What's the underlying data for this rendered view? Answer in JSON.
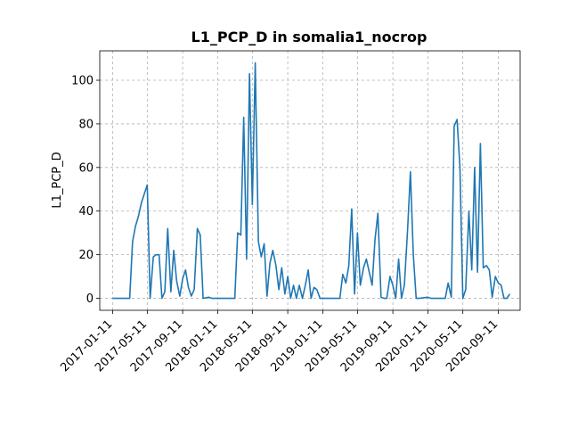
{
  "chart_data": {
    "type": "line",
    "title": "L1_PCP_D in somalia1_nocrop",
    "xlabel": "",
    "ylabel": "L1_PCP_D",
    "grid": true,
    "xlim": [
      "2016-11-27",
      "2020-11-26"
    ],
    "ylim": [
      -5.5,
      113.5
    ],
    "x_ticks": [
      "2017-01-11",
      "2017-05-11",
      "2017-09-11",
      "2018-01-11",
      "2018-05-11",
      "2018-09-11",
      "2019-01-11",
      "2019-05-11",
      "2019-09-11",
      "2020-01-11",
      "2020-05-11",
      "2020-09-11"
    ],
    "y_ticks": [
      0,
      20,
      40,
      60,
      80,
      100
    ],
    "series": [
      {
        "color": "#1f77b4",
        "points": [
          [
            "2017-01-11",
            0
          ],
          [
            "2017-03-11",
            0
          ],
          [
            "2017-03-21",
            26
          ],
          [
            "2017-03-31",
            33
          ],
          [
            "2017-04-11",
            38
          ],
          [
            "2017-04-21",
            44
          ],
          [
            "2017-05-11",
            52
          ],
          [
            "2017-05-21",
            0
          ],
          [
            "2017-06-01",
            19
          ],
          [
            "2017-06-11",
            20
          ],
          [
            "2017-06-21",
            20
          ],
          [
            "2017-07-01",
            0
          ],
          [
            "2017-07-11",
            3
          ],
          [
            "2017-07-21",
            32
          ],
          [
            "2017-08-01",
            3
          ],
          [
            "2017-08-11",
            22
          ],
          [
            "2017-08-21",
            8
          ],
          [
            "2017-09-01",
            1
          ],
          [
            "2017-09-11",
            9
          ],
          [
            "2017-09-21",
            13
          ],
          [
            "2017-10-01",
            5
          ],
          [
            "2017-10-11",
            1
          ],
          [
            "2017-10-21",
            4
          ],
          [
            "2017-11-01",
            32
          ],
          [
            "2017-11-11",
            29
          ],
          [
            "2017-11-21",
            0
          ],
          [
            "2017-12-11",
            0.5
          ],
          [
            "2017-12-21",
            0
          ],
          [
            "2018-03-11",
            0
          ],
          [
            "2018-03-21",
            30
          ],
          [
            "2018-04-01",
            29
          ],
          [
            "2018-04-11",
            83
          ],
          [
            "2018-04-21",
            18
          ],
          [
            "2018-05-01",
            103
          ],
          [
            "2018-05-11",
            43
          ],
          [
            "2018-05-21",
            108
          ],
          [
            "2018-06-01",
            26
          ],
          [
            "2018-06-11",
            19
          ],
          [
            "2018-06-21",
            25
          ],
          [
            "2018-07-01",
            1
          ],
          [
            "2018-07-11",
            16
          ],
          [
            "2018-07-21",
            22
          ],
          [
            "2018-08-01",
            15
          ],
          [
            "2018-08-11",
            4
          ],
          [
            "2018-08-21",
            14
          ],
          [
            "2018-09-01",
            2
          ],
          [
            "2018-09-11",
            10
          ],
          [
            "2018-09-21",
            0
          ],
          [
            "2018-10-01",
            6
          ],
          [
            "2018-10-11",
            0
          ],
          [
            "2018-10-21",
            6
          ],
          [
            "2018-11-01",
            0
          ],
          [
            "2018-11-11",
            6
          ],
          [
            "2018-11-21",
            13
          ],
          [
            "2018-12-01",
            0
          ],
          [
            "2018-12-11",
            5
          ],
          [
            "2018-12-21",
            4
          ],
          [
            "2019-01-01",
            0
          ],
          [
            "2019-01-11",
            0
          ],
          [
            "2019-02-11",
            0
          ],
          [
            "2019-03-11",
            0
          ],
          [
            "2019-03-21",
            11
          ],
          [
            "2019-04-01",
            7
          ],
          [
            "2019-04-11",
            15
          ],
          [
            "2019-04-21",
            41
          ],
          [
            "2019-05-01",
            2
          ],
          [
            "2019-05-11",
            30
          ],
          [
            "2019-05-21",
            6
          ],
          [
            "2019-06-01",
            14
          ],
          [
            "2019-06-11",
            18
          ],
          [
            "2019-06-21",
            12
          ],
          [
            "2019-07-01",
            6
          ],
          [
            "2019-07-11",
            27
          ],
          [
            "2019-07-21",
            39
          ],
          [
            "2019-08-01",
            0.5
          ],
          [
            "2019-08-11",
            0
          ],
          [
            "2019-08-21",
            0
          ],
          [
            "2019-09-01",
            10
          ],
          [
            "2019-09-11",
            6
          ],
          [
            "2019-09-21",
            0
          ],
          [
            "2019-10-01",
            18
          ],
          [
            "2019-10-11",
            0
          ],
          [
            "2019-10-21",
            6
          ],
          [
            "2019-11-01",
            31
          ],
          [
            "2019-11-11",
            58
          ],
          [
            "2019-11-21",
            20
          ],
          [
            "2019-12-01",
            0
          ],
          [
            "2019-12-11",
            0
          ],
          [
            "2020-01-11",
            0.5
          ],
          [
            "2020-01-21",
            0
          ],
          [
            "2020-03-11",
            0
          ],
          [
            "2020-03-21",
            7
          ],
          [
            "2020-04-01",
            0.5
          ],
          [
            "2020-04-11",
            79
          ],
          [
            "2020-04-21",
            82
          ],
          [
            "2020-05-01",
            60
          ],
          [
            "2020-05-11",
            0
          ],
          [
            "2020-05-21",
            4
          ],
          [
            "2020-06-01",
            40
          ],
          [
            "2020-06-11",
            13
          ],
          [
            "2020-06-21",
            60
          ],
          [
            "2020-07-01",
            12
          ],
          [
            "2020-07-11",
            71
          ],
          [
            "2020-07-21",
            14
          ],
          [
            "2020-08-01",
            15
          ],
          [
            "2020-08-11",
            13
          ],
          [
            "2020-08-21",
            0.5
          ],
          [
            "2020-09-01",
            10
          ],
          [
            "2020-09-11",
            7
          ],
          [
            "2020-09-21",
            6
          ],
          [
            "2020-10-01",
            0
          ],
          [
            "2020-10-11",
            0
          ],
          [
            "2020-10-21",
            2
          ]
        ]
      }
    ]
  }
}
